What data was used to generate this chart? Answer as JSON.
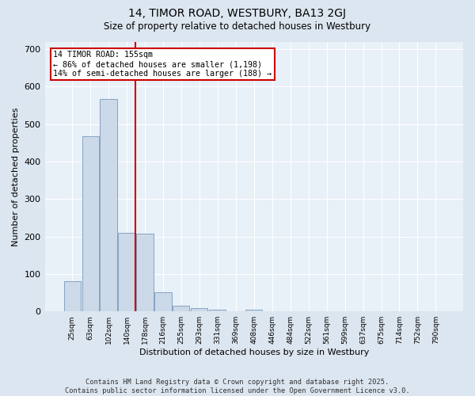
{
  "title1": "14, TIMOR ROAD, WESTBURY, BA13 2GJ",
  "title2": "Size of property relative to detached houses in Westbury",
  "xlabel": "Distribution of detached houses by size in Westbury",
  "ylabel": "Number of detached properties",
  "bar_labels": [
    "25sqm",
    "63sqm",
    "102sqm",
    "140sqm",
    "178sqm",
    "216sqm",
    "255sqm",
    "293sqm",
    "331sqm",
    "369sqm",
    "408sqm",
    "446sqm",
    "484sqm",
    "522sqm",
    "561sqm",
    "599sqm",
    "637sqm",
    "675sqm",
    "714sqm",
    "752sqm",
    "790sqm"
  ],
  "bar_values": [
    80,
    467,
    567,
    210,
    207,
    52,
    15,
    8,
    5,
    0,
    5,
    0,
    0,
    0,
    0,
    0,
    0,
    0,
    0,
    0,
    0
  ],
  "bar_color": "#ccd9e8",
  "bar_edgecolor": "#7799bb",
  "vline_color": "#cc0000",
  "annotation_text": "14 TIMOR ROAD: 155sqm\n← 86% of detached houses are smaller (1,198)\n14% of semi-detached houses are larger (188) →",
  "annotation_box_facecolor": "#ffffff",
  "annotation_box_edgecolor": "#cc0000",
  "ylim": [
    0,
    720
  ],
  "yticks": [
    0,
    100,
    200,
    300,
    400,
    500,
    600,
    700
  ],
  "footer": "Contains HM Land Registry data © Crown copyright and database right 2025.\nContains public sector information licensed under the Open Government Licence v3.0.",
  "bg_color": "#dce6f0",
  "plot_bg_color": "#e8f0f8"
}
